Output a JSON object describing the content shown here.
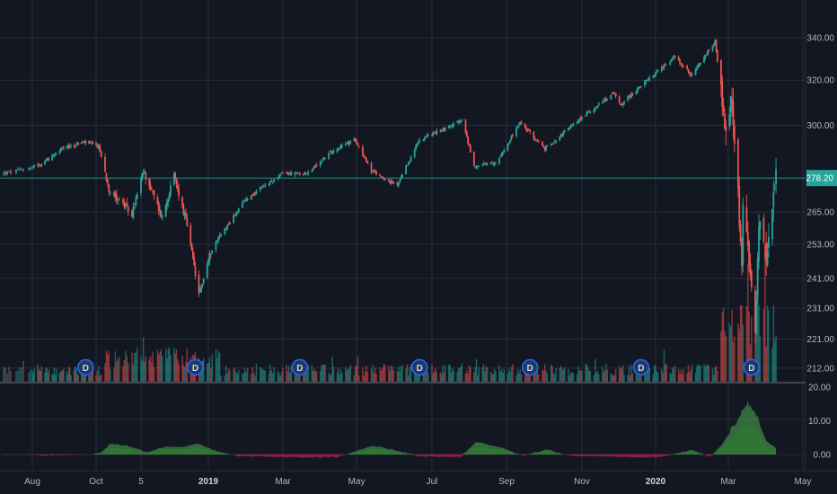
{
  "chart_data": {
    "type": "candlestick",
    "x_axis_labels": [
      "Aug",
      "Oct",
      "5",
      "2019",
      "Mar",
      "May",
      "Jul",
      "Sep",
      "Nov",
      "2020",
      "Mar",
      "May"
    ],
    "price_axis": {
      "tick_labels": [
        "340.00",
        "320.00",
        "300.00",
        "278.20",
        "265.00",
        "253.00",
        "241.00",
        "231.00",
        "221.00",
        "212.00"
      ],
      "scale": "log",
      "ylim": [
        205,
        350
      ]
    },
    "last_price": {
      "label": "278.20",
      "value": 278.2,
      "color": "#26a69a"
    },
    "price_anchors": [
      [
        "2018-07-16",
        280
      ],
      [
        "2018-08-10",
        284
      ],
      [
        "2018-08-29",
        290
      ],
      [
        "2018-09-20",
        293
      ],
      [
        "2018-10-03",
        291
      ],
      [
        "2018-10-11",
        274
      ],
      [
        "2018-10-29",
        264
      ],
      [
        "2018-11-07",
        281
      ],
      [
        "2018-11-23",
        263
      ],
      [
        "2018-12-03",
        279
      ],
      [
        "2018-12-14",
        260
      ],
      [
        "2018-12-24",
        235
      ],
      [
        "2019-01-04",
        252
      ],
      [
        "2019-01-31",
        270
      ],
      [
        "2019-03-01",
        280
      ],
      [
        "2019-03-22",
        280
      ],
      [
        "2019-04-10",
        289
      ],
      [
        "2019-04-30",
        294
      ],
      [
        "2019-05-13",
        281
      ],
      [
        "2019-06-03",
        275
      ],
      [
        "2019-06-21",
        294
      ],
      [
        "2019-07-26",
        302
      ],
      [
        "2019-08-05",
        283
      ],
      [
        "2019-08-23",
        284
      ],
      [
        "2019-09-12",
        301
      ],
      [
        "2019-10-02",
        290
      ],
      [
        "2019-10-31",
        303
      ],
      [
        "2019-11-27",
        314
      ],
      [
        "2019-12-03",
        309
      ],
      [
        "2020-01-17",
        331
      ],
      [
        "2020-01-31",
        322
      ],
      [
        "2020-02-19",
        338
      ],
      [
        "2020-02-28",
        295
      ],
      [
        "2020-03-04",
        312
      ],
      [
        "2020-03-12",
        246
      ],
      [
        "2020-03-13",
        269
      ],
      [
        "2020-03-23",
        222
      ],
      [
        "2020-03-26",
        261
      ],
      [
        "2020-04-01",
        246
      ],
      [
        "2020-04-09",
        278
      ]
    ],
    "volume": {
      "tick_labels": [
        "231.00",
        "221.00",
        "212.00"
      ],
      "up_color": "#26a69a",
      "down_color": "#ef5350"
    },
    "dividend_markers": {
      "label": "D",
      "dates": [
        "2018-09-21",
        "2018-12-21",
        "2019-03-15",
        "2019-06-21",
        "2019-09-20",
        "2019-12-20",
        "2020-03-20"
      ]
    },
    "indicator": {
      "type": "area",
      "tick_labels": [
        "20.00",
        "10.00",
        "0.00"
      ],
      "ylim": [
        -3,
        20
      ],
      "positive_color": "#4caf50",
      "negative_color": "#c2185b",
      "anchors": [
        [
          "2018-07-16",
          0
        ],
        [
          "2018-08-15",
          -0.3
        ],
        [
          "2018-09-25",
          0
        ],
        [
          "2018-10-05",
          0.5
        ],
        [
          "2018-10-12",
          3.2
        ],
        [
          "2018-10-26",
          2.6
        ],
        [
          "2018-11-10",
          0.6
        ],
        [
          "2018-11-26",
          2.4
        ],
        [
          "2018-12-10",
          2.2
        ],
        [
          "2018-12-24",
          3.2
        ],
        [
          "2019-01-07",
          1
        ],
        [
          "2019-01-25",
          -0.5
        ],
        [
          "2019-03-01",
          -0.8
        ],
        [
          "2019-04-15",
          -0.8
        ],
        [
          "2019-05-14",
          2.6
        ],
        [
          "2019-06-03",
          1.2
        ],
        [
          "2019-06-20",
          -0.6
        ],
        [
          "2019-07-25",
          -0.8
        ],
        [
          "2019-08-07",
          3.8
        ],
        [
          "2019-08-26",
          2.2
        ],
        [
          "2019-09-15",
          -0.4
        ],
        [
          "2019-10-03",
          1.6
        ],
        [
          "2019-10-20",
          -0.3
        ],
        [
          "2019-12-01",
          -0.7
        ],
        [
          "2020-01-05",
          -0.8
        ],
        [
          "2020-01-31",
          1.4
        ],
        [
          "2020-02-15",
          -0.7
        ],
        [
          "2020-02-24",
          2.5
        ],
        [
          "2020-03-02",
          6.5
        ],
        [
          "2020-03-09",
          11
        ],
        [
          "2020-03-16",
          15.5
        ],
        [
          "2020-03-24",
          12
        ],
        [
          "2020-04-01",
          4
        ],
        [
          "2020-04-09",
          2
        ]
      ]
    },
    "grid": true
  }
}
